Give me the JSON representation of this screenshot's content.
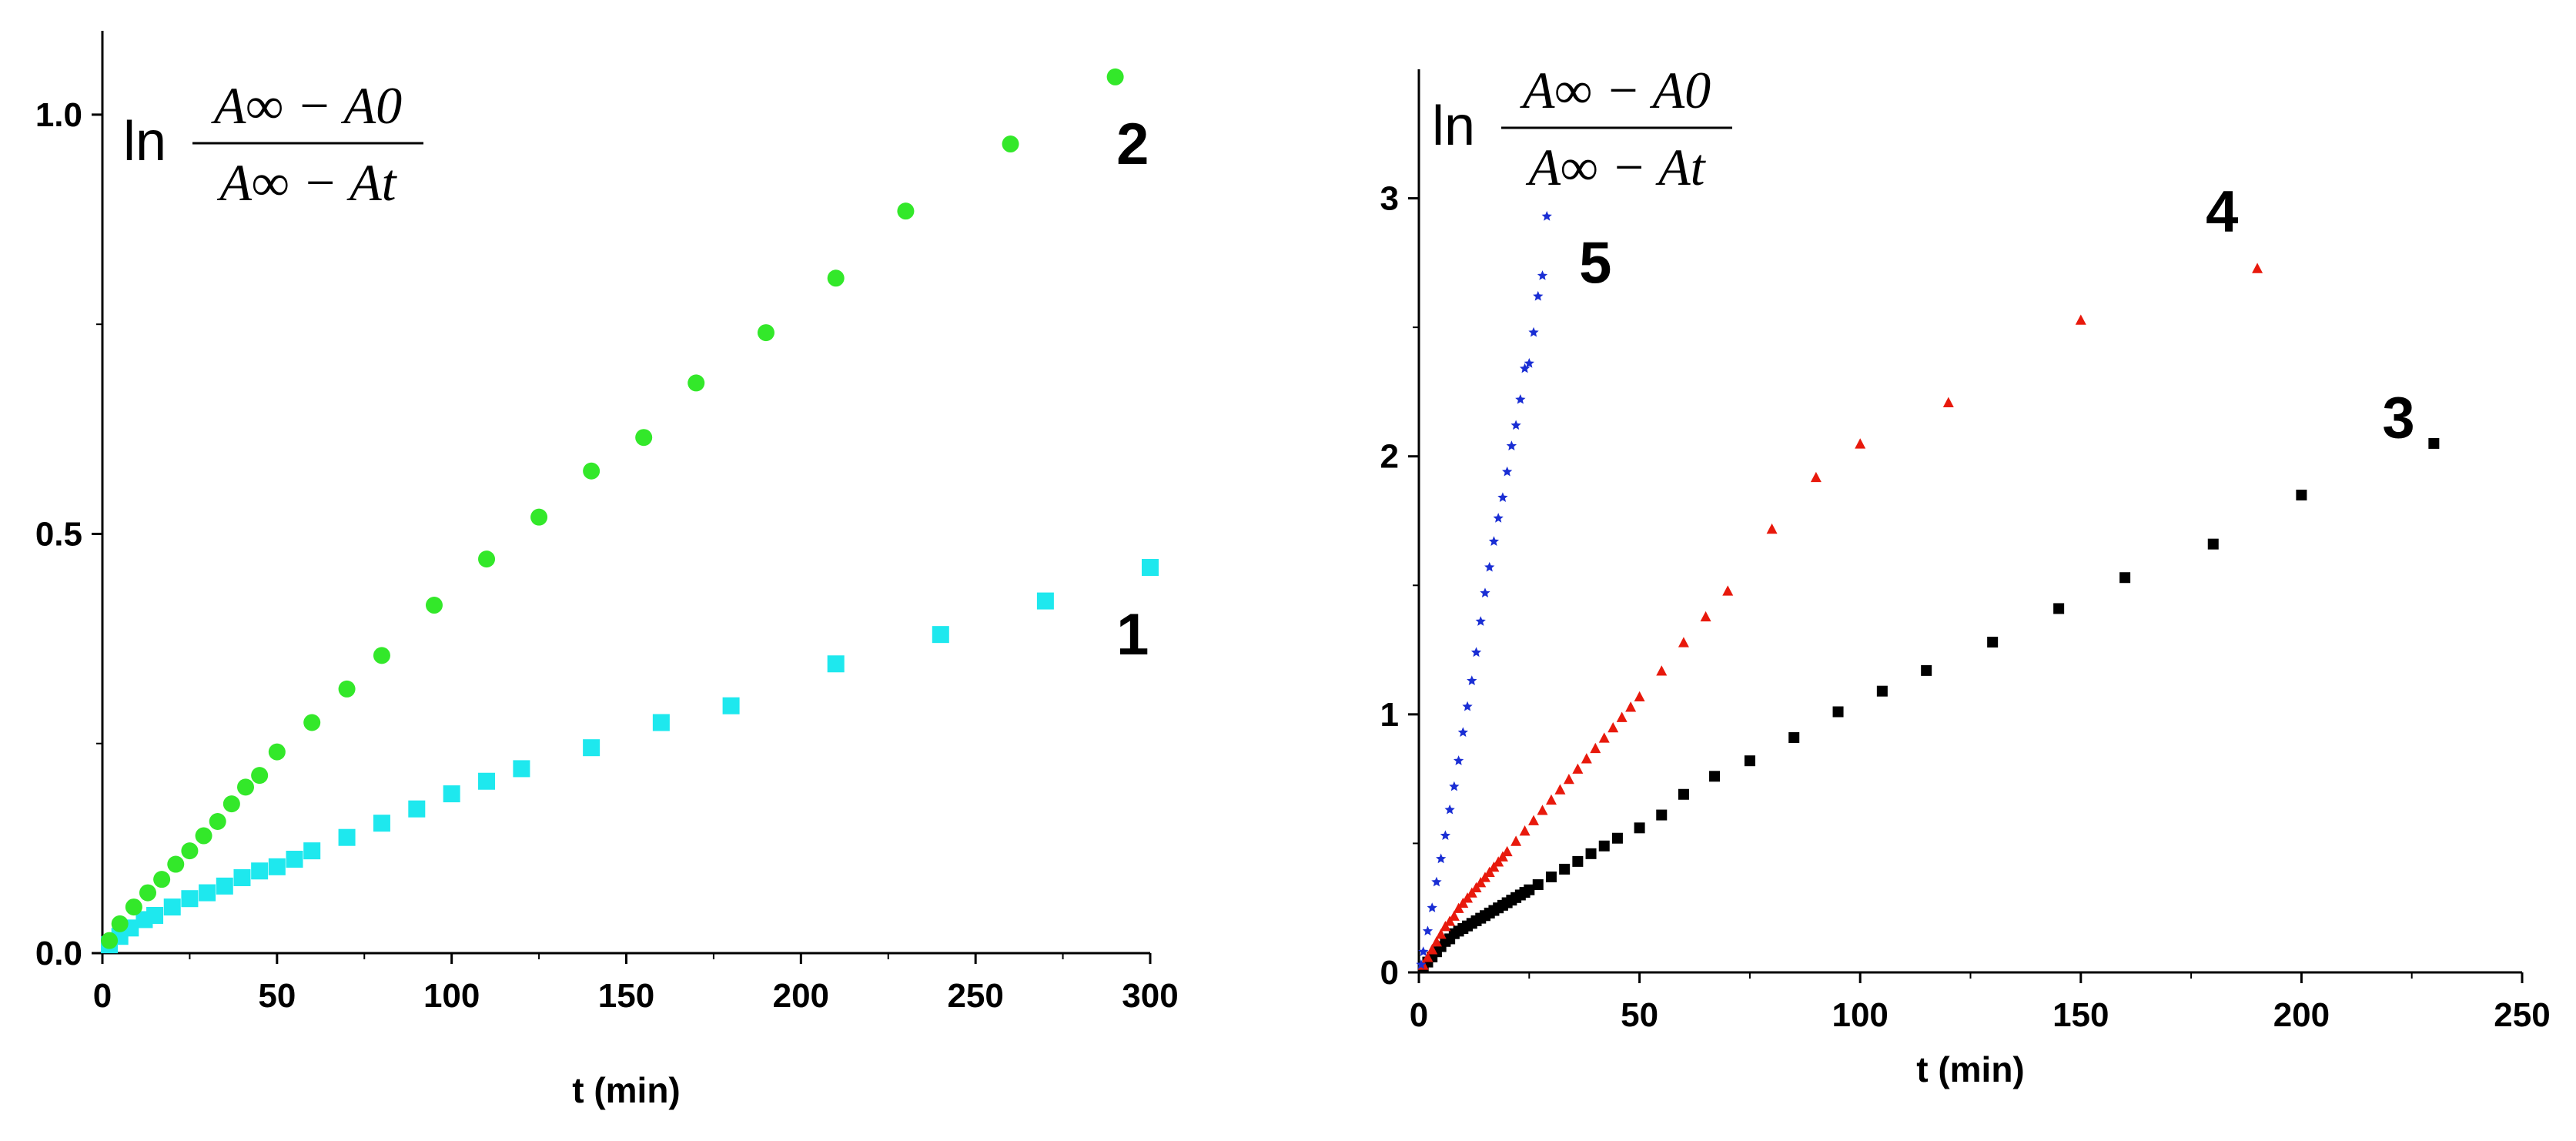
{
  "chart_data": [
    {
      "type": "scatter",
      "panel": "left",
      "title": "",
      "xlabel": "t (min)",
      "ylabel": "",
      "xlim": [
        0,
        300
      ],
      "ylim": [
        0,
        1.1
      ],
      "xticks": [
        0,
        50,
        100,
        150,
        200,
        250,
        300
      ],
      "yticks": [
        0.0,
        0.5,
        1.0
      ],
      "xtick_labels": [
        "0",
        "50",
        "100",
        "150",
        "200",
        "250",
        "300"
      ],
      "ytick_labels": [
        "0.0",
        "0.5",
        "1.0"
      ],
      "grid": false,
      "ylabel_formula": {
        "ln": "ln",
        "numerator": "A∞ − A0",
        "denominator": "A∞ − At"
      },
      "series": [
        {
          "name": "1",
          "marker": "square",
          "color": "#1ee8ee",
          "x": [
            2,
            5,
            8,
            12,
            15,
            20,
            25,
            30,
            35,
            40,
            45,
            50,
            55,
            60,
            70,
            80,
            90,
            100,
            110,
            120,
            140,
            160,
            180,
            210,
            240,
            270,
            300
          ],
          "y": [
            0.01,
            0.02,
            0.03,
            0.04,
            0.045,
            0.055,
            0.065,
            0.072,
            0.08,
            0.09,
            0.098,
            0.103,
            0.112,
            0.122,
            0.138,
            0.155,
            0.172,
            0.19,
            0.205,
            0.22,
            0.245,
            0.275,
            0.295,
            0.345,
            0.38,
            0.42,
            0.46
          ]
        },
        {
          "name": "2",
          "marker": "circle",
          "color": "#33e82a",
          "x": [
            2,
            5,
            9,
            13,
            17,
            21,
            25,
            29,
            33,
            37,
            41,
            45,
            50,
            60,
            70,
            80,
            95,
            110,
            125,
            140,
            155,
            170,
            190,
            210,
            230,
            260,
            290
          ],
          "y": [
            0.015,
            0.035,
            0.055,
            0.072,
            0.088,
            0.106,
            0.122,
            0.14,
            0.157,
            0.178,
            0.198,
            0.212,
            0.24,
            0.275,
            0.315,
            0.355,
            0.415,
            0.47,
            0.52,
            0.575,
            0.615,
            0.68,
            0.74,
            0.805,
            0.885,
            0.965,
            1.045
          ]
        }
      ],
      "series_labels": [
        {
          "text": "1",
          "x": 295,
          "y": 0.38
        },
        {
          "text": "2",
          "x": 295,
          "y": 0.965
        }
      ]
    },
    {
      "type": "scatter",
      "panel": "right",
      "title": "",
      "xlabel": "t (min)",
      "ylabel": "",
      "xlim": [
        0,
        250
      ],
      "ylim": [
        0,
        3.5
      ],
      "xticks": [
        0,
        50,
        100,
        150,
        200,
        250
      ],
      "yticks": [
        0,
        1,
        2,
        3
      ],
      "xtick_labels": [
        "0",
        "50",
        "100",
        "150",
        "200",
        "250"
      ],
      "ytick_labels": [
        "0",
        "1",
        "2",
        "3"
      ],
      "grid": false,
      "ylabel_formula": {
        "ln": "ln",
        "numerator": "A∞ − A0",
        "denominator": "A∞ − At"
      },
      "series": [
        {
          "name": "3",
          "marker": "square",
          "color": "#000000",
          "x": [
            1,
            2,
            3,
            4,
            5,
            6,
            7,
            8,
            9,
            10,
            11,
            12,
            13,
            14,
            15,
            16,
            17,
            18,
            19,
            20,
            21,
            22,
            23,
            24,
            25,
            27,
            30,
            33,
            36,
            39,
            42,
            45,
            50,
            55,
            60,
            67,
            75,
            85,
            95,
            105,
            115,
            130,
            145,
            160,
            180,
            200,
            230
          ],
          "y": [
            0.02,
            0.04,
            0.06,
            0.08,
            0.1,
            0.12,
            0.13,
            0.15,
            0.16,
            0.17,
            0.18,
            0.19,
            0.2,
            0.21,
            0.22,
            0.23,
            0.24,
            0.25,
            0.26,
            0.27,
            0.28,
            0.29,
            0.3,
            0.31,
            0.32,
            0.34,
            0.37,
            0.4,
            0.43,
            0.46,
            0.49,
            0.52,
            0.56,
            0.61,
            0.69,
            0.76,
            0.82,
            0.91,
            1.01,
            1.09,
            1.17,
            1.28,
            1.41,
            1.53,
            1.66,
            1.85,
            2.05
          ]
        },
        {
          "name": "4",
          "marker": "triangle",
          "color": "#e8190c",
          "x": [
            1,
            2,
            3,
            4,
            5,
            6,
            7,
            8,
            9,
            10,
            11,
            12,
            13,
            14,
            15,
            16,
            17,
            18,
            19,
            20,
            22,
            24,
            26,
            28,
            30,
            32,
            34,
            36,
            38,
            40,
            42,
            44,
            46,
            48,
            50,
            55,
            60,
            65,
            70,
            80,
            90,
            100,
            120,
            150,
            190
          ],
          "y": [
            0.03,
            0.06,
            0.09,
            0.12,
            0.15,
            0.18,
            0.2,
            0.22,
            0.25,
            0.27,
            0.29,
            0.31,
            0.33,
            0.35,
            0.37,
            0.39,
            0.41,
            0.43,
            0.45,
            0.47,
            0.51,
            0.55,
            0.59,
            0.63,
            0.67,
            0.71,
            0.75,
            0.79,
            0.83,
            0.87,
            0.91,
            0.95,
            0.99,
            1.03,
            1.07,
            1.17,
            1.28,
            1.38,
            1.48,
            1.72,
            1.92,
            2.05,
            2.21,
            2.53,
            2.73
          ]
        },
        {
          "name": "5",
          "marker": "star",
          "color": "#1a2ed4",
          "x": [
            0.5,
            1.0,
            2.0,
            3.0,
            4.0,
            5.0,
            6.0,
            7.0,
            8.0,
            9.0,
            10.0,
            11.0,
            12.0,
            13.0,
            14.0,
            15.0,
            16.0,
            17.0,
            18.0,
            19.0,
            20.0,
            21.0,
            22.0,
            23.0,
            24.0,
            25.0,
            26.0,
            27.0,
            28.0,
            29.0
          ],
          "y": [
            0.03,
            0.08,
            0.16,
            0.25,
            0.35,
            0.44,
            0.53,
            0.63,
            0.72,
            0.82,
            0.93,
            1.03,
            1.13,
            1.24,
            1.36,
            1.47,
            1.57,
            1.67,
            1.76,
            1.84,
            1.94,
            2.04,
            2.12,
            2.22,
            2.34,
            2.36,
            2.48,
            2.62,
            2.7,
            2.93
          ]
        }
      ],
      "series_labels": [
        {
          "text": "3",
          "x": 222,
          "y": 2.15
        },
        {
          "text": "4",
          "x": 182,
          "y": 2.95
        },
        {
          "text": "5",
          "x": 40,
          "y": 2.75
        }
      ]
    }
  ]
}
